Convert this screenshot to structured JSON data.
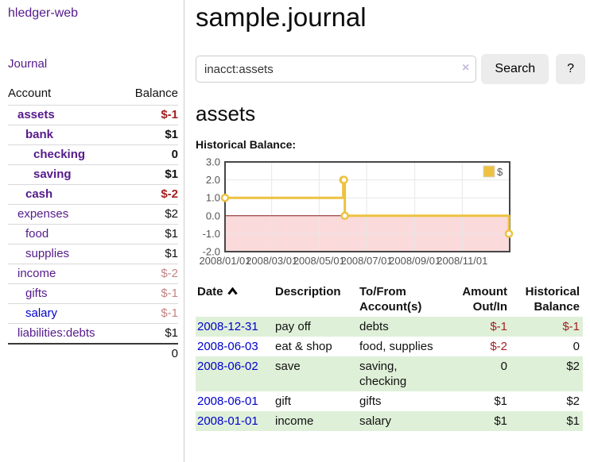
{
  "app": {
    "brand": "hledger-web"
  },
  "nav": {
    "journal": "Journal"
  },
  "sidebar": {
    "headers": [
      "Account",
      "Balance"
    ],
    "accounts": [
      {
        "name": "assets",
        "level": 1,
        "balance": "$-1",
        "in_account": true,
        "balance_style": "negative"
      },
      {
        "name": "bank",
        "level": 2,
        "balance": "$1",
        "in_account": true,
        "balance_style": "normal"
      },
      {
        "name": "checking",
        "level": 3,
        "balance": "0",
        "in_account": true,
        "balance_style": "normal"
      },
      {
        "name": "saving",
        "level": 3,
        "balance": "$1",
        "in_account": true,
        "balance_style": "normal"
      },
      {
        "name": "cash",
        "level": 2,
        "balance": "$-2",
        "in_account": true,
        "balance_style": "negative"
      },
      {
        "name": "expenses",
        "level": 1,
        "balance": "$2",
        "in_account": false,
        "balance_style": "normal"
      },
      {
        "name": "food",
        "level": 2,
        "balance": "$1",
        "in_account": false,
        "balance_style": "normal"
      },
      {
        "name": "supplies",
        "level": 2,
        "balance": "$1",
        "in_account": false,
        "balance_style": "normal"
      },
      {
        "name": "income",
        "level": 1,
        "balance": "$-2",
        "in_account": false,
        "balance_style": "negative-muted"
      },
      {
        "name": "gifts",
        "level": 2,
        "balance": "$-1",
        "in_account": false,
        "balance_style": "negative-muted"
      },
      {
        "name": "salary",
        "level": 2,
        "balance": "$-1",
        "in_account": false,
        "balance_style": "negative-muted",
        "link_style": "unvisited"
      },
      {
        "name": "liabilities:debts",
        "level": 1,
        "balance": "$1",
        "in_account": false,
        "balance_style": "normal"
      }
    ],
    "total": "0"
  },
  "header": {
    "title": "sample.journal"
  },
  "search": {
    "value": "inacct:assets",
    "clear_icon": "×",
    "button_label": "Search",
    "help_label": "?"
  },
  "account_page": {
    "title": "assets",
    "chart_label": "Historical Balance:"
  },
  "chart_data": {
    "type": "line",
    "step": true,
    "title": "Historical Balance:",
    "series": [
      {
        "name": "$",
        "color": "#edc240",
        "points": [
          [
            "2008-01-01",
            1
          ],
          [
            "2008-06-01",
            2
          ],
          [
            "2008-06-02",
            2
          ],
          [
            "2008-06-03",
            0
          ],
          [
            "2008-12-31",
            -1
          ]
        ]
      }
    ],
    "x_ticks": [
      "2008-01-01",
      "2008-03-01",
      "2008-05-01",
      "2008-07-01",
      "2008-09-01",
      "2008-11-01"
    ],
    "x_tick_labels": [
      "2008/01/01",
      "2008/03/01",
      "2008/05/01",
      "2008/07/01",
      "2008/09/01",
      "2008/11/01"
    ],
    "y_ticks": [
      3.0,
      2.0,
      1.0,
      0.0,
      -1.0,
      -2.0
    ],
    "xlim": [
      "2008-01-01",
      "2009-01-01"
    ],
    "ylim": [
      -2,
      3
    ],
    "grid": true,
    "legend": {
      "label": "$",
      "position": "top-right"
    },
    "colors": {
      "line": "#edc240",
      "marker_fill": "#ffffff",
      "negative_region": "#fadada",
      "zero_line": "#8a1c1c",
      "grid": "#e7e7e7",
      "border": "#474747",
      "tick_text": "#545454"
    }
  },
  "register": {
    "headers": {
      "date": "Date",
      "description": "Description",
      "accounts": "To/From Account(s)",
      "amount": "Amount Out/In",
      "balance": "Historical Balance"
    },
    "sort": {
      "column": "date",
      "direction": "ascending"
    },
    "rows": [
      {
        "date": "2008-12-31",
        "description": "pay off",
        "accounts": "debts",
        "amount": "$-1",
        "amount_neg": true,
        "balance": "$-1",
        "balance_neg": true
      },
      {
        "date": "2008-06-03",
        "description": "eat & shop",
        "accounts": "food, supplies",
        "amount": "$-2",
        "amount_neg": true,
        "balance": "0",
        "balance_neg": false
      },
      {
        "date": "2008-06-02",
        "description": "save",
        "accounts": "saving, checking",
        "amount": "0",
        "amount_neg": false,
        "balance": "$2",
        "balance_neg": false
      },
      {
        "date": "2008-06-01",
        "description": "gift",
        "accounts": "gifts",
        "amount": "$1",
        "amount_neg": false,
        "balance": "$2",
        "balance_neg": false
      },
      {
        "date": "2008-01-01",
        "description": "income",
        "accounts": "salary",
        "amount": "$1",
        "amount_neg": false,
        "balance": "$1",
        "balance_neg": false
      }
    ]
  },
  "colors": {
    "purple_link": "#551a8b",
    "blue_link": "#0000cc",
    "negative": "#a31f1f",
    "negative_muted": "#c48484",
    "row_stripe_green": "#dff0d8",
    "button_bg": "#ececec",
    "sidebar_border": "#cccccc"
  }
}
